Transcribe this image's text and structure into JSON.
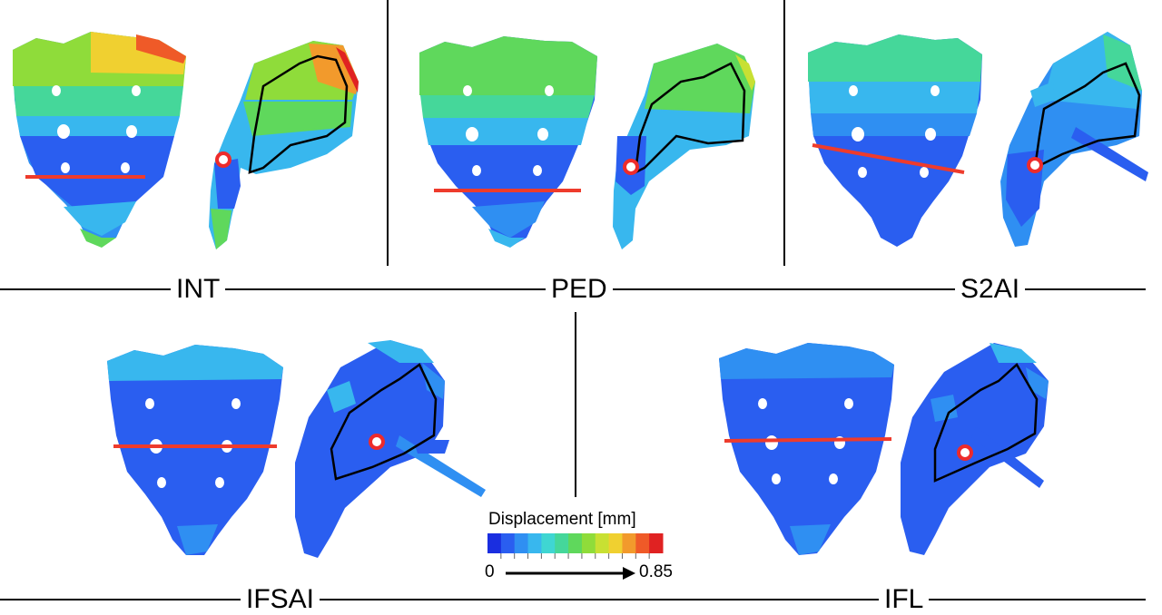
{
  "panels": [
    {
      "id": "int",
      "label": "INT"
    },
    {
      "id": "ped",
      "label": "PED"
    },
    {
      "id": "s2ai",
      "label": "S2AI"
    },
    {
      "id": "ifsai",
      "label": "IFSAI"
    },
    {
      "id": "ifl",
      "label": "IFL"
    }
  ],
  "legend": {
    "title": "Displacement [mm]",
    "min": "0",
    "max": "0.85",
    "colors": [
      "#1a2ee0",
      "#2a5ef0",
      "#2f8ff2",
      "#38b7ee",
      "#3fd6d2",
      "#45d79a",
      "#5fd85c",
      "#8fdc3a",
      "#c8e033",
      "#f0d030",
      "#f29a2c",
      "#ef5a28",
      "#e02222"
    ]
  },
  "colors": {
    "screw_line": "#ee3b2c",
    "point_marker": "#ee2b2b"
  }
}
